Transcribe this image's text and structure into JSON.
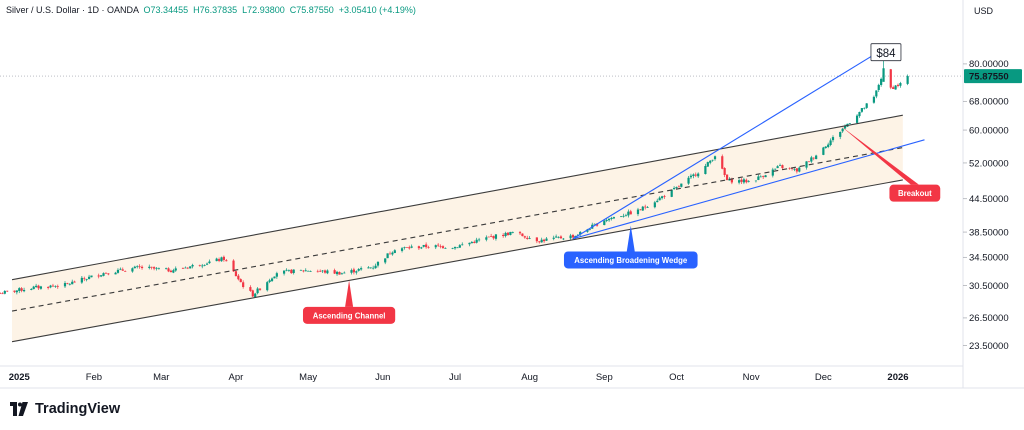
{
  "legend": {
    "title": "Silver / U.S. Dollar · 1D · OANDA",
    "open": "O73.34455",
    "high": "H76.37835",
    "low": "L72.93800",
    "close": "C75.87550",
    "change": "+3.05410 (+4.19%)"
  },
  "currency": "USD",
  "brand": "TradingView",
  "colors": {
    "up": "#089981",
    "down": "#f23645",
    "channel": "#3c3c3c",
    "wedge": "#2962ff",
    "channel_fill": "#fdf3e6",
    "annotation_red": "#f23645",
    "annotation_blue": "#2962ff",
    "price_badge": "#089981"
  },
  "chart_data": {
    "type": "candlestick",
    "symbol": "Silver / U.S. Dollar",
    "interval": "1D",
    "source": "OANDA",
    "y_scale": "log",
    "ylim": [
      21.5,
      96
    ],
    "y_ticks": [
      {
        "value": 23.5,
        "label": "23.50000"
      },
      {
        "value": 26.5,
        "label": "26.50000"
      },
      {
        "value": 30.5,
        "label": "30.50000"
      },
      {
        "value": 34.5,
        "label": "34.50000"
      },
      {
        "value": 38.5,
        "label": "38.50000"
      },
      {
        "value": 44.5,
        "label": "44.50000"
      },
      {
        "value": 52,
        "label": "52.00000"
      },
      {
        "value": 60,
        "label": "60.00000"
      },
      {
        "value": 68,
        "label": "68.00000"
      },
      {
        "value": 80,
        "label": "80.00000"
      }
    ],
    "x_start": "2024-12-24",
    "x_end": "2026-01-28",
    "x_ticks": [
      {
        "date": "2025-01-01",
        "label": "2025"
      },
      {
        "date": "2025-02-01",
        "label": "Feb"
      },
      {
        "date": "2025-03-01",
        "label": "Mar"
      },
      {
        "date": "2025-04-01",
        "label": "Apr"
      },
      {
        "date": "2025-05-01",
        "label": "May"
      },
      {
        "date": "2025-06-01",
        "label": "Jun"
      },
      {
        "date": "2025-07-01",
        "label": "Jul"
      },
      {
        "date": "2025-08-01",
        "label": "Aug"
      },
      {
        "date": "2025-09-01",
        "label": "Sep"
      },
      {
        "date": "2025-10-01",
        "label": "Oct"
      },
      {
        "date": "2025-11-01",
        "label": "Nov"
      },
      {
        "date": "2025-12-01",
        "label": "Dec"
      },
      {
        "date": "2026-01-01",
        "label": "2026"
      }
    ],
    "price_anchors": [
      [
        "2024-12-24",
        29.5
      ],
      [
        "2025-01-06",
        30.2
      ],
      [
        "2025-01-20",
        30.6
      ],
      [
        "2025-02-05",
        32.2
      ],
      [
        "2025-02-20",
        33.0
      ],
      [
        "2025-03-05",
        32.6
      ],
      [
        "2025-03-15",
        33.3
      ],
      [
        "2025-03-27",
        34.3
      ],
      [
        "2025-04-04",
        30.5
      ],
      [
        "2025-04-08",
        29.3
      ],
      [
        "2025-04-18",
        32.3
      ],
      [
        "2025-05-01",
        32.6
      ],
      [
        "2025-05-15",
        32.2
      ],
      [
        "2025-05-28",
        33.1
      ],
      [
        "2025-06-06",
        35.8
      ],
      [
        "2025-06-20",
        36.2
      ],
      [
        "2025-07-01",
        36.1
      ],
      [
        "2025-07-15",
        37.6
      ],
      [
        "2025-07-25",
        38.4
      ],
      [
        "2025-08-05",
        37.1
      ],
      [
        "2025-08-20",
        37.9
      ],
      [
        "2025-09-01",
        40.6
      ],
      [
        "2025-09-15",
        42.2
      ],
      [
        "2025-10-01",
        46.6
      ],
      [
        "2025-10-13",
        51.2
      ],
      [
        "2025-10-17",
        53.8
      ],
      [
        "2025-10-22",
        48.2
      ],
      [
        "2025-11-01",
        48.0
      ],
      [
        "2025-11-13",
        51.2
      ],
      [
        "2025-11-20",
        50.3
      ],
      [
        "2025-11-28",
        53.9
      ],
      [
        "2025-12-10",
        61.0
      ],
      [
        "2025-12-22",
        69.0
      ],
      [
        "2025-12-26",
        77.5
      ],
      [
        "2025-12-29",
        72.0
      ],
      [
        "2026-01-02",
        73.3
      ],
      [
        "2026-01-05",
        75.88
      ]
    ],
    "last_price": {
      "value": 75.8755,
      "label": "75.87550"
    },
    "target": {
      "value": 84,
      "label": "$84",
      "date": "2025-12-27"
    },
    "lines": [
      {
        "name": "channel-upper",
        "style": "solid",
        "from": [
          "2024-12-29",
          31.3
        ],
        "to": [
          "2026-01-03",
          64.0
        ]
      },
      {
        "name": "channel-lower",
        "style": "solid",
        "from": [
          "2024-12-29",
          23.9
        ],
        "to": [
          "2026-01-03",
          48.3
        ]
      },
      {
        "name": "channel-mid",
        "style": "dashed",
        "from": [
          "2024-12-29",
          27.3
        ],
        "to": [
          "2026-01-03",
          55.6
        ]
      },
      {
        "name": "wedge-upper",
        "style": "solid",
        "from": [
          "2025-08-19",
          37.4
        ],
        "to": [
          "2025-12-28",
          86.5
        ]
      },
      {
        "name": "wedge-lower",
        "style": "solid",
        "from": [
          "2025-08-19",
          37.4
        ],
        "to": [
          "2026-01-12",
          57.5
        ]
      }
    ],
    "annotations": [
      {
        "label": "Ascending Channel",
        "style": "red",
        "date": "2025-05-18",
        "pointer_value": 31.2,
        "box_value": 26.8
      },
      {
        "label": "Ascending Broadening Wedge",
        "style": "blue",
        "date": "2025-09-12",
        "pointer_value": 39.6,
        "box_value": 34.1
      },
      {
        "label": "Breakout",
        "style": "red",
        "date": "2026-01-08",
        "pointer_date": "2025-12-08",
        "pointer_value": 61.2,
        "box_value": 45.6
      }
    ]
  }
}
